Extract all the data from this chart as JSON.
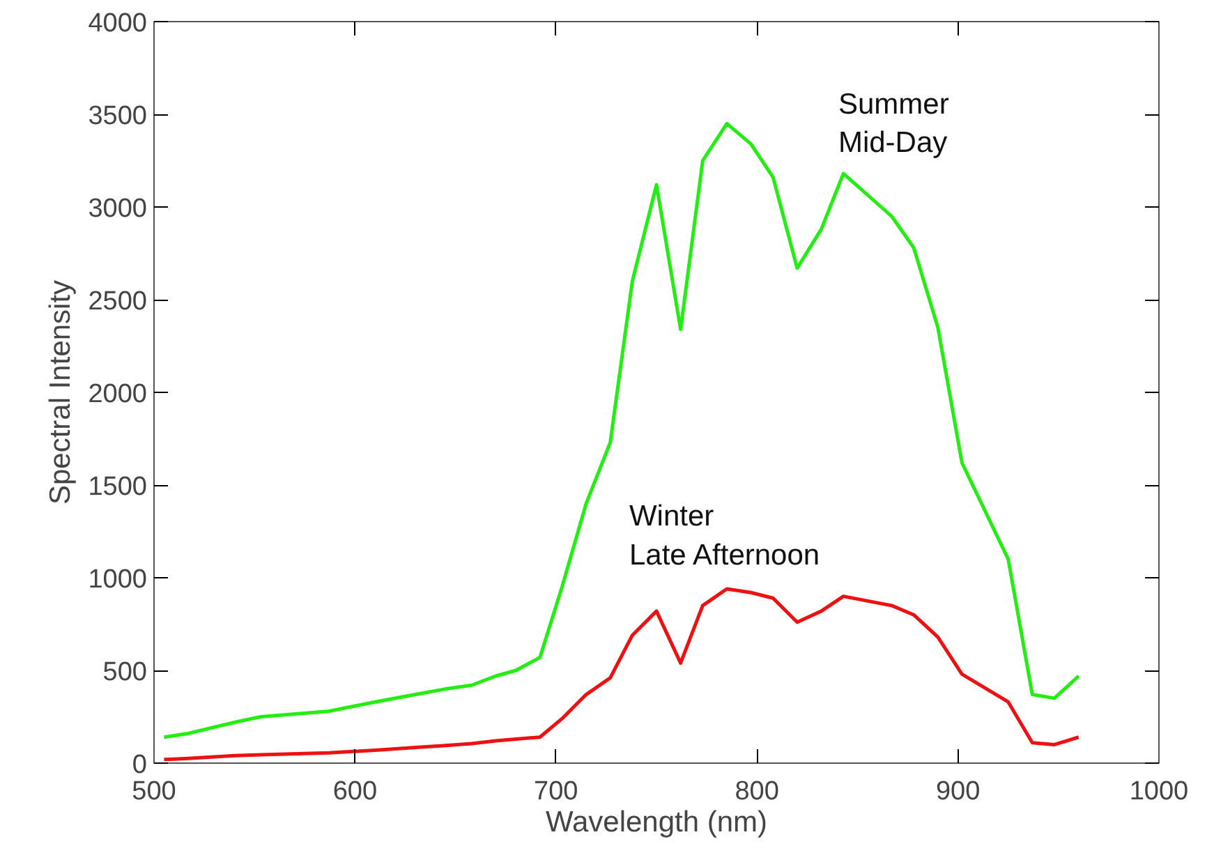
{
  "chart_data": {
    "type": "line",
    "xlabel": "Wavelength (nm)",
    "ylabel": "Spectral Intensity",
    "xlim": [
      500,
      1000
    ],
    "ylim": [
      0,
      4000
    ],
    "xticks": [
      500,
      600,
      700,
      800,
      900,
      1000
    ],
    "yticks": [
      0,
      500,
      1000,
      1500,
      2000,
      2500,
      3000,
      3500,
      4000
    ],
    "grid": false,
    "x": [
      505,
      517,
      540,
      553,
      587,
      610,
      630,
      645,
      658,
      670,
      680,
      692,
      703,
      715,
      727,
      738,
      750,
      762,
      773,
      785,
      797,
      808,
      820,
      832,
      843,
      867,
      878,
      890,
      902,
      925,
      937,
      948,
      960
    ],
    "series": [
      {
        "name": "Summer\nMid-Day",
        "color": "#22ee11",
        "values": [
          140,
          160,
          220,
          250,
          280,
          330,
          370,
          400,
          420,
          470,
          500,
          570,
          950,
          1400,
          1730,
          2600,
          3120,
          2340,
          3250,
          3450,
          3340,
          3160,
          2670,
          2880,
          3180,
          2950,
          2780,
          2350,
          1620,
          1100,
          370,
          350,
          470
        ]
      },
      {
        "name": "Winter\nLate Afternoon",
        "color": "#ee1111",
        "values": [
          20,
          25,
          40,
          45,
          55,
          70,
          85,
          95,
          105,
          120,
          130,
          140,
          240,
          370,
          460,
          690,
          820,
          540,
          850,
          940,
          920,
          890,
          760,
          820,
          900,
          850,
          800,
          680,
          480,
          330,
          110,
          100,
          140
        ]
      }
    ]
  }
}
